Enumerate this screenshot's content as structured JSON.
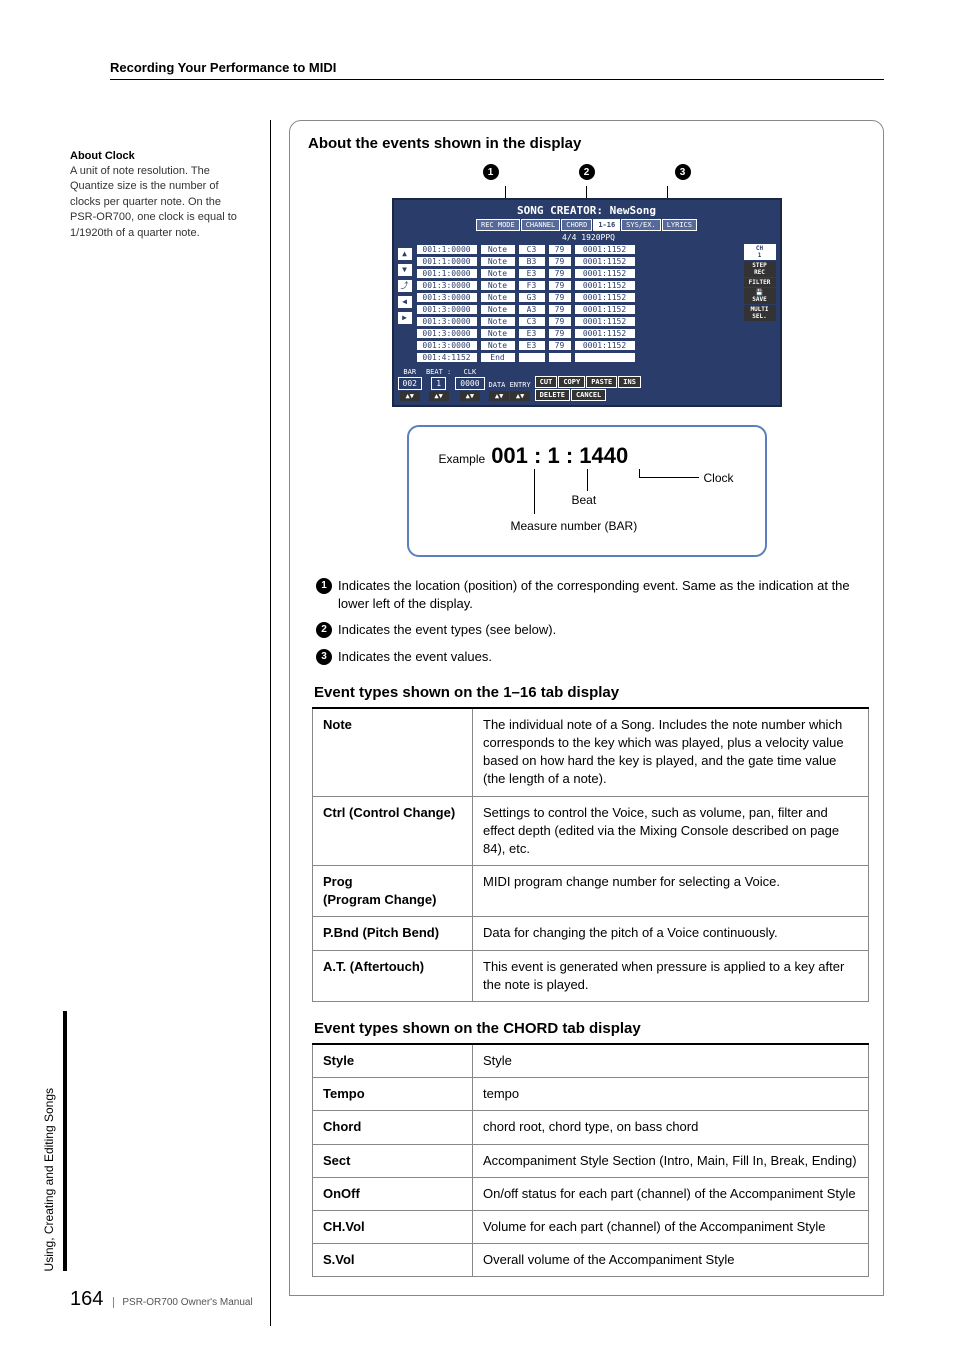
{
  "header": {
    "title": "Recording Your Performance to MIDI"
  },
  "leftNote": {
    "title": "About Clock",
    "text": "A unit of note resolution. The Quantize size is the number of clocks per quarter note. On the PSR-OR700, one clock is equal to 1/1920th of a quarter note."
  },
  "main": {
    "sectionTitle": "About the events shown in the display",
    "indicators": [
      "1",
      "2",
      "3"
    ],
    "lcd": {
      "title": "SONG CREATOR: NewSong",
      "tabs": [
        "REC MODE",
        "CHANNEL",
        "CHORD",
        "1-16",
        "SYS/EX.",
        "LYRICS"
      ],
      "activeTab": 3,
      "meta": "4/4     1920PPQ",
      "leftIcons": [
        "▲",
        "▼",
        "⤴",
        "◀",
        "▶"
      ],
      "rightIcons": [
        {
          "label": "CH",
          "sub": "1"
        },
        {
          "label": "STEP",
          "sub": "REC"
        },
        {
          "label": "FILTER",
          "sub": ""
        },
        {
          "label": "💾",
          "sub": "SAVE"
        },
        {
          "label": "MULTI",
          "sub": "SEL."
        }
      ],
      "rows": [
        {
          "pos": "001:1:0000",
          "type": "Note",
          "note": "C3",
          "vel": "79",
          "gate": "0001:1152"
        },
        {
          "pos": "001:1:0000",
          "type": "Note",
          "note": "B3",
          "vel": "79",
          "gate": "0001:1152"
        },
        {
          "pos": "001:1:0000",
          "type": "Note",
          "note": "E3",
          "vel": "79",
          "gate": "0001:1152"
        },
        {
          "pos": "001:3:0000",
          "type": "Note",
          "note": "F3",
          "vel": "79",
          "gate": "0001:1152"
        },
        {
          "pos": "001:3:0000",
          "type": "Note",
          "note": "G3",
          "vel": "79",
          "gate": "0001:1152"
        },
        {
          "pos": "001:3:0000",
          "type": "Note",
          "note": "A3",
          "vel": "79",
          "gate": "0001:1152"
        },
        {
          "pos": "001:3:0000",
          "type": "Note",
          "note": "C3",
          "vel": "79",
          "gate": "0001:1152"
        },
        {
          "pos": "001:3:0000",
          "type": "Note",
          "note": "E3",
          "vel": "79",
          "gate": "0001:1152"
        },
        {
          "pos": "001:3:0000",
          "type": "Note",
          "note": "E3",
          "vel": "79",
          "gate": "0001:1152"
        },
        {
          "pos": "001:4:1152",
          "type": "End",
          "note": "",
          "vel": "",
          "gate": ""
        }
      ],
      "bottom": {
        "bar_label": "BAR",
        "bar_val": "002",
        "beat_label": "BEAT :",
        "beat_val": "1",
        "clk_label": "CLK",
        "clk_val": "0000",
        "data_entry": "DATA ENTRY",
        "buttons": [
          "CUT",
          "COPY",
          "PASTE",
          "INS",
          "DELETE",
          "CANCEL"
        ]
      }
    },
    "example": {
      "label": "Example",
      "bar": "001",
      "sep1": " : ",
      "beat": "1",
      "sep2": " : ",
      "clock": "1440",
      "anno_clock": "Clock",
      "anno_beat": "Beat",
      "anno_measure": "Measure number (BAR)"
    },
    "indicatorDesc": [
      "Indicates the location (position) of the corresponding event. Same as the indication at the lower left of the display.",
      "Indicates the event types (see below).",
      "Indicates the event values."
    ],
    "table1": {
      "title": "Event types shown on the 1–16 tab display",
      "rows": [
        {
          "label": "Note",
          "desc": "The individual note of a Song. Includes the note number which corresponds to the key which was played, plus a velocity value based on how hard the key is played, and the gate time value (the length of a note)."
        },
        {
          "label": "Ctrl (Control Change)",
          "desc": "Settings to control the Voice, such as volume, pan, filter and effect depth (edited via the Mixing Console described on page 84), etc."
        },
        {
          "label": "Prog\n(Program Change)",
          "desc": "MIDI program change number for selecting a Voice."
        },
        {
          "label": "P.Bnd (Pitch Bend)",
          "desc": "Data for changing the pitch of a Voice continuously."
        },
        {
          "label": "A.T. (Aftertouch)",
          "desc": "This event is generated when pressure is applied to a key after the note is played."
        }
      ]
    },
    "table2": {
      "title": "Event types shown on the CHORD tab display",
      "rows": [
        {
          "label": "Style",
          "desc": "Style"
        },
        {
          "label": "Tempo",
          "desc": "tempo"
        },
        {
          "label": "Chord",
          "desc": "chord root, chord type, on bass chord"
        },
        {
          "label": "Sect",
          "desc": "Accompaniment Style Section (Intro, Main, Fill In, Break, Ending)"
        },
        {
          "label": "OnOff",
          "desc": "On/off status for each part (channel) of the Accompaniment Style"
        },
        {
          "label": "CH.Vol",
          "desc": "Volume for each part (channel) of the Accompaniment Style"
        },
        {
          "label": "S.Vol",
          "desc": "Overall volume of the Accompaniment Style"
        }
      ]
    }
  },
  "sidebar": {
    "text": "Using, Creating and Editing Songs"
  },
  "footer": {
    "page": "164",
    "title": "PSR-OR700 Owner's Manual"
  }
}
